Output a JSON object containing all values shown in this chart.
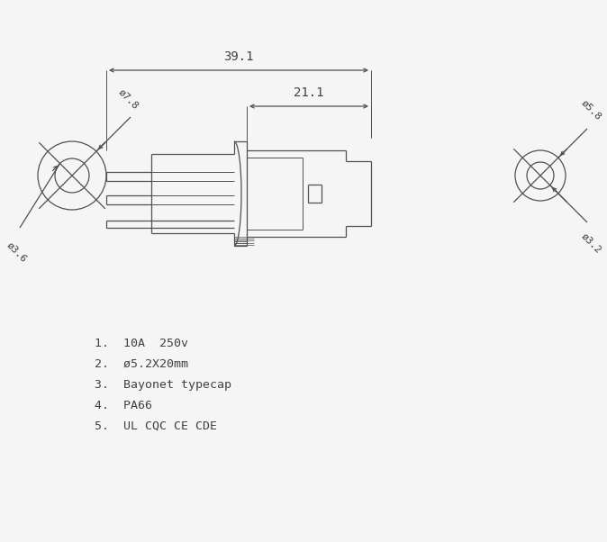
{
  "bg_color": "#f5f5f5",
  "line_color": "#505050",
  "text_color": "#404040",
  "title_lines": [
    "1.  10A  250v",
    "2.  ø5.2X20mm",
    "3.  Bayonet typecap",
    "4.  PA66",
    "5.  UL CQC CE CDE"
  ],
  "dim_391": "39.1",
  "dim_211": "21.1",
  "dim_phi78": "ø7.8",
  "dim_phi36": "ø3.6",
  "dim_phi58": "ø5.8",
  "dim_phi32": "ø3.2"
}
